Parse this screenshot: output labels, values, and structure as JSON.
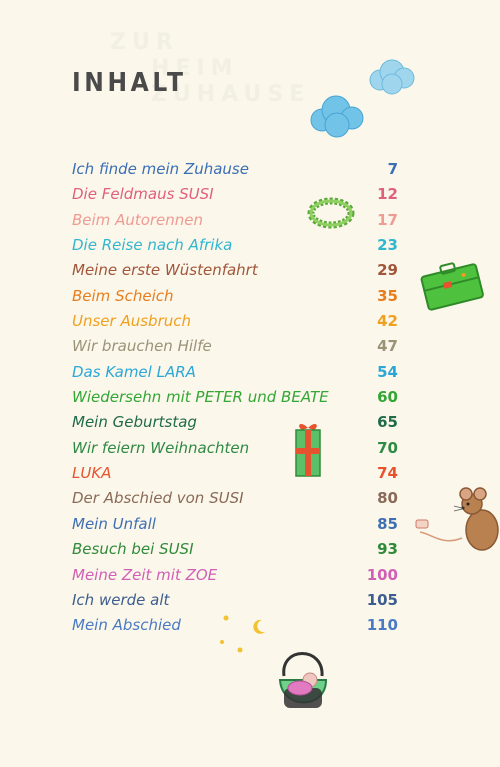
{
  "header": {
    "title": "INHALT"
  },
  "toc": {
    "entries": [
      {
        "title": "Ich finde mein Zuhause",
        "page": "7",
        "color": "#3a6fb5"
      },
      {
        "title": "Die Feldmaus SUSI",
        "page": "12",
        "color": "#e0607a"
      },
      {
        "title": "Beim Autorennen",
        "page": "17",
        "color": "#ef9a92"
      },
      {
        "title": "Die Reise nach Afrika",
        "page": "23",
        "color": "#31b6cf"
      },
      {
        "title": "Meine erste Wüstenfahrt",
        "page": "29",
        "color": "#a0563a"
      },
      {
        "title": "Beim Scheich",
        "page": "35",
        "color": "#e87d1e"
      },
      {
        "title": "Unser Ausbruch",
        "page": "42",
        "color": "#f0a020"
      },
      {
        "title": "Wir brauchen Hilfe",
        "page": "47",
        "color": "#9a9378"
      },
      {
        "title": "Das Kamel LARA",
        "page": "54",
        "color": "#2aa7d8"
      },
      {
        "title": "Wiedersehn mit PETER und BEATE",
        "page": "60",
        "color": "#33a636"
      },
      {
        "title": "Mein Geburtstag",
        "page": "65",
        "color": "#1f6b4a"
      },
      {
        "title": "Wir feiern Weihnachten",
        "page": "70",
        "color": "#2e8a44"
      },
      {
        "title": "LUKA",
        "page": "74",
        "color": "#e8532f"
      },
      {
        "title": "Der Abschied von SUSI",
        "page": "80",
        "color": "#8a6a58"
      },
      {
        "title": "Mein Unfall",
        "page": "85",
        "color": "#3f6fb2"
      },
      {
        "title": "Besuch bei SUSI",
        "page": "93",
        "color": "#2f8a3a"
      },
      {
        "title": "Meine Zeit mit ZOE",
        "page": "100",
        "color": "#d05fb5"
      },
      {
        "title": "Ich werde alt",
        "page": "105",
        "color": "#3d5d8f"
      },
      {
        "title": "Mein Abschied",
        "page": "110",
        "color": "#4a7ac4"
      }
    ]
  },
  "icons": [
    "cloud-icon",
    "wreath-icon",
    "suitcase-icon",
    "gift-icon",
    "mouse-icon",
    "stars-icon",
    "moon-icon",
    "baby-seat-icon"
  ]
}
